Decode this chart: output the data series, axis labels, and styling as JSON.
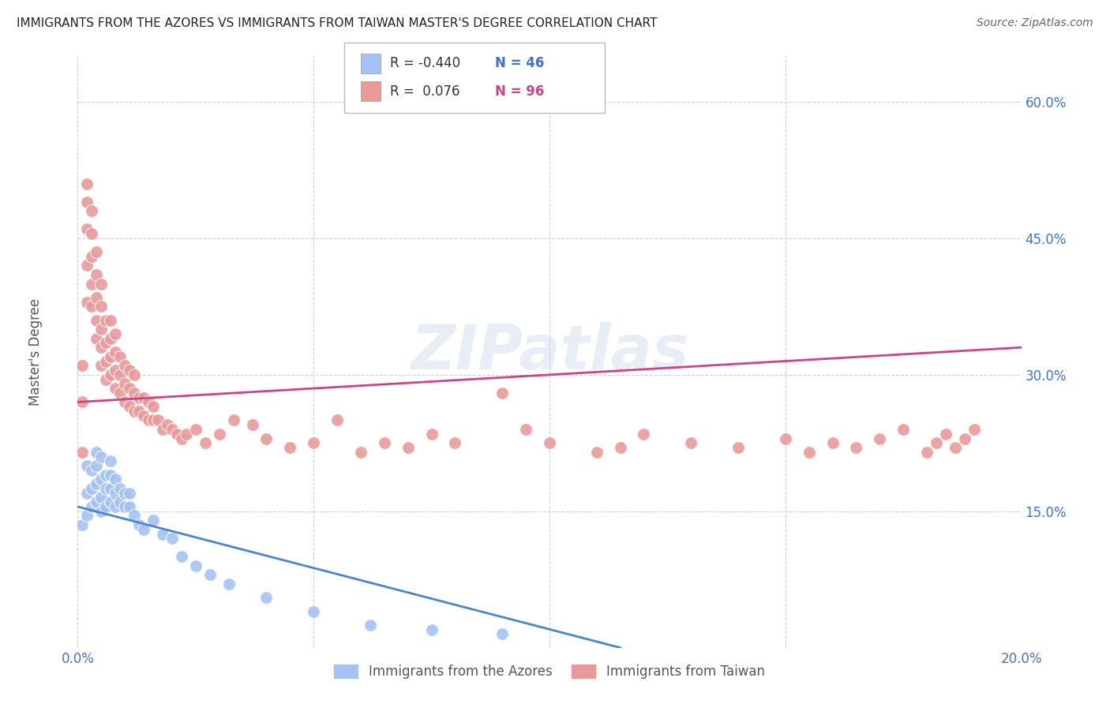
{
  "title": "IMMIGRANTS FROM THE AZORES VS IMMIGRANTS FROM TAIWAN MASTER'S DEGREE CORRELATION CHART",
  "source": "Source: ZipAtlas.com",
  "ylabel": "Master's Degree",
  "xlim": [
    0.0,
    0.2
  ],
  "ylim": [
    0.0,
    0.65
  ],
  "xticks": [
    0.0,
    0.05,
    0.1,
    0.15,
    0.2
  ],
  "xtick_labels": [
    "0.0%",
    "",
    "",
    "",
    "20.0%"
  ],
  "yticks": [
    0.0,
    0.15,
    0.3,
    0.45,
    0.6
  ],
  "ytick_labels": [
    "",
    "15.0%",
    "30.0%",
    "45.0%",
    "60.0%"
  ],
  "color_blue": "#a4c2f4",
  "color_pink": "#ea9999",
  "line_color_blue": "#4a86c8",
  "line_color_pink": "#cc4488",
  "background_color": "#ffffff",
  "watermark_text": "ZIPatlas",
  "watermark_color": "#c0d0e8",
  "legend_r1": "R = -0.440",
  "legend_n1": "N = 46",
  "legend_r2": "R =  0.076",
  "legend_n2": "N = 96",
  "legend_color_r": "#333333",
  "legend_color_n1": "#4472c4",
  "legend_color_n2": "#cc4488",
  "azores_x": [
    0.001,
    0.002,
    0.002,
    0.002,
    0.003,
    0.003,
    0.003,
    0.004,
    0.004,
    0.004,
    0.004,
    0.005,
    0.005,
    0.005,
    0.005,
    0.006,
    0.006,
    0.006,
    0.007,
    0.007,
    0.007,
    0.007,
    0.008,
    0.008,
    0.008,
    0.009,
    0.009,
    0.01,
    0.01,
    0.011,
    0.011,
    0.012,
    0.013,
    0.014,
    0.016,
    0.018,
    0.02,
    0.022,
    0.025,
    0.028,
    0.032,
    0.04,
    0.05,
    0.062,
    0.075,
    0.09
  ],
  "azores_y": [
    0.135,
    0.145,
    0.17,
    0.2,
    0.155,
    0.175,
    0.195,
    0.16,
    0.18,
    0.2,
    0.215,
    0.15,
    0.165,
    0.185,
    0.21,
    0.155,
    0.175,
    0.19,
    0.16,
    0.175,
    0.19,
    0.205,
    0.155,
    0.17,
    0.185,
    0.16,
    0.175,
    0.155,
    0.17,
    0.155,
    0.17,
    0.145,
    0.135,
    0.13,
    0.14,
    0.125,
    0.12,
    0.1,
    0.09,
    0.08,
    0.07,
    0.055,
    0.04,
    0.025,
    0.02,
    0.015
  ],
  "taiwan_x": [
    0.001,
    0.001,
    0.001,
    0.002,
    0.002,
    0.002,
    0.002,
    0.002,
    0.003,
    0.003,
    0.003,
    0.003,
    0.003,
    0.004,
    0.004,
    0.004,
    0.004,
    0.004,
    0.005,
    0.005,
    0.005,
    0.005,
    0.005,
    0.006,
    0.006,
    0.006,
    0.006,
    0.007,
    0.007,
    0.007,
    0.007,
    0.008,
    0.008,
    0.008,
    0.008,
    0.009,
    0.009,
    0.009,
    0.01,
    0.01,
    0.01,
    0.011,
    0.011,
    0.011,
    0.012,
    0.012,
    0.012,
    0.013,
    0.013,
    0.014,
    0.014,
    0.015,
    0.015,
    0.016,
    0.016,
    0.017,
    0.018,
    0.019,
    0.02,
    0.021,
    0.022,
    0.023,
    0.025,
    0.027,
    0.03,
    0.033,
    0.037,
    0.04,
    0.045,
    0.05,
    0.055,
    0.06,
    0.065,
    0.07,
    0.075,
    0.08,
    0.09,
    0.095,
    0.1,
    0.11,
    0.115,
    0.12,
    0.13,
    0.14,
    0.15,
    0.155,
    0.16,
    0.165,
    0.17,
    0.175,
    0.18,
    0.182,
    0.184,
    0.186,
    0.188,
    0.19
  ],
  "taiwan_y": [
    0.215,
    0.27,
    0.31,
    0.38,
    0.42,
    0.46,
    0.49,
    0.51,
    0.375,
    0.4,
    0.43,
    0.455,
    0.48,
    0.34,
    0.36,
    0.385,
    0.41,
    0.435,
    0.31,
    0.33,
    0.35,
    0.375,
    0.4,
    0.295,
    0.315,
    0.335,
    0.36,
    0.3,
    0.32,
    0.34,
    0.36,
    0.285,
    0.305,
    0.325,
    0.345,
    0.28,
    0.3,
    0.32,
    0.27,
    0.29,
    0.31,
    0.265,
    0.285,
    0.305,
    0.26,
    0.28,
    0.3,
    0.26,
    0.275,
    0.255,
    0.275,
    0.25,
    0.27,
    0.25,
    0.265,
    0.25,
    0.24,
    0.245,
    0.24,
    0.235,
    0.23,
    0.235,
    0.24,
    0.225,
    0.235,
    0.25,
    0.245,
    0.23,
    0.22,
    0.225,
    0.25,
    0.215,
    0.225,
    0.22,
    0.235,
    0.225,
    0.28,
    0.24,
    0.225,
    0.215,
    0.22,
    0.235,
    0.225,
    0.22,
    0.23,
    0.215,
    0.225,
    0.22,
    0.23,
    0.24,
    0.215,
    0.225,
    0.235,
    0.22,
    0.23,
    0.24
  ],
  "blue_line_x": [
    0.0,
    0.115
  ],
  "blue_line_y": [
    0.155,
    0.0
  ],
  "pink_line_x": [
    0.0,
    0.2
  ],
  "pink_line_y": [
    0.27,
    0.33
  ]
}
